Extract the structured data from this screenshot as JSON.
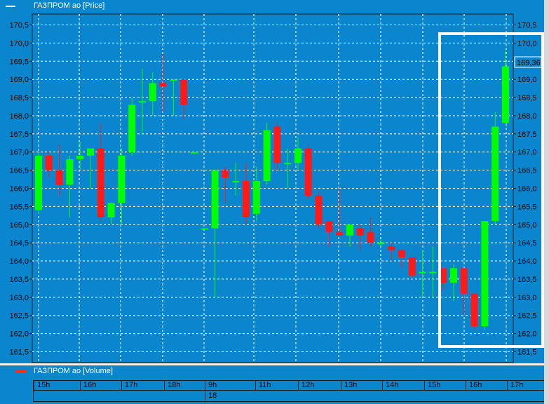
{
  "legend": {
    "price_label": "ГАЗПРОМ ао [Price]",
    "volume_label": "ГАЗПРОМ ао [Volume]"
  },
  "colors": {
    "background": "#0a86cf",
    "up": "#00ff00",
    "down": "#ff1a1a",
    "grid": "#ffffff",
    "highlight": "#ffffff"
  },
  "chart_data": {
    "type": "candlestick",
    "title": "ГАЗПРОМ ао [Price]",
    "ylim": [
      161.2,
      170.8
    ],
    "yticks": [
      "161,5",
      "162,0",
      "162,5",
      "163,0",
      "163,5",
      "164,0",
      "164,5",
      "165,0",
      "165,5",
      "166,0",
      "166,5",
      "167,0",
      "167,5",
      "168,0",
      "168,5",
      "169,0",
      "169,5",
      "170,0",
      "170,5"
    ],
    "ytick_values": [
      161.5,
      162.0,
      162.5,
      163.0,
      163.5,
      164.0,
      164.5,
      165.0,
      165.5,
      166.0,
      166.5,
      167.0,
      167.5,
      168.0,
      168.5,
      169.0,
      169.5,
      170.0,
      170.5
    ],
    "last_price_label": "169,36",
    "last_price": 169.36,
    "time_labels": [
      "15h",
      "16h",
      "17h",
      "18h",
      "9h",
      "11h",
      "12h",
      "13h",
      "14h",
      "15h",
      "16h",
      "17h"
    ],
    "date_labels": [
      "18"
    ],
    "grid": true,
    "candles": [
      {
        "o": 165.4,
        "h": 167.0,
        "l": 165.3,
        "c": 166.9
      },
      {
        "o": 166.9,
        "h": 167.0,
        "l": 166.3,
        "c": 166.5
      },
      {
        "o": 166.5,
        "h": 167.2,
        "l": 165.8,
        "c": 166.1
      },
      {
        "o": 166.1,
        "h": 166.9,
        "l": 165.2,
        "c": 166.8
      },
      {
        "o": 166.8,
        "h": 167.3,
        "l": 166.5,
        "c": 166.9
      },
      {
        "o": 166.9,
        "h": 167.1,
        "l": 166.0,
        "c": 167.1
      },
      {
        "o": 167.1,
        "h": 167.8,
        "l": 165.1,
        "c": 165.2
      },
      {
        "o": 165.2,
        "h": 165.6,
        "l": 165.0,
        "c": 165.6
      },
      {
        "o": 165.6,
        "h": 167.1,
        "l": 165.0,
        "c": 166.9
      },
      {
        "o": 167.0,
        "h": 168.5,
        "l": 166.9,
        "c": 168.3
      },
      {
        "o": 168.4,
        "h": 169.3,
        "l": 167.5,
        "c": 168.4
      },
      {
        "o": 168.4,
        "h": 169.2,
        "l": 168.0,
        "c": 168.9
      },
      {
        "o": 168.9,
        "h": 169.7,
        "l": 168.1,
        "c": 168.8
      },
      {
        "o": 169.0,
        "h": 169.0,
        "l": 168.0,
        "c": 169.0
      },
      {
        "o": 169.0,
        "h": 169.0,
        "l": 167.9,
        "c": 168.3
      },
      {
        "o": 167.0,
        "h": 167.0,
        "l": 167.0,
        "c": 167.0
      },
      {
        "o": 164.9,
        "h": 164.9,
        "l": 164.9,
        "c": 164.9
      },
      {
        "o": 164.9,
        "h": 166.5,
        "l": 163.0,
        "c": 166.5
      },
      {
        "o": 166.5,
        "h": 166.6,
        "l": 165.6,
        "c": 166.3
      },
      {
        "o": 166.2,
        "h": 166.7,
        "l": 165.8,
        "c": 166.2
      },
      {
        "o": 166.2,
        "h": 166.7,
        "l": 165.0,
        "c": 165.2
      },
      {
        "o": 165.3,
        "h": 166.6,
        "l": 165.1,
        "c": 166.2
      },
      {
        "o": 166.2,
        "h": 167.8,
        "l": 166.1,
        "c": 167.6
      },
      {
        "o": 167.7,
        "h": 167.8,
        "l": 166.5,
        "c": 166.7
      },
      {
        "o": 166.7,
        "h": 167.1,
        "l": 166.0,
        "c": 166.7
      },
      {
        "o": 166.7,
        "h": 167.4,
        "l": 166.5,
        "c": 167.1
      },
      {
        "o": 167.1,
        "h": 167.2,
        "l": 165.7,
        "c": 165.8
      },
      {
        "o": 165.8,
        "h": 165.9,
        "l": 164.9,
        "c": 165.0
      },
      {
        "o": 165.1,
        "h": 165.1,
        "l": 164.4,
        "c": 164.8
      },
      {
        "o": 164.8,
        "h": 166.0,
        "l": 164.7,
        "c": 164.7
      },
      {
        "o": 164.7,
        "h": 165.0,
        "l": 164.4,
        "c": 165.0
      },
      {
        "o": 164.9,
        "h": 165.0,
        "l": 164.3,
        "c": 164.7
      },
      {
        "o": 164.8,
        "h": 165.2,
        "l": 164.4,
        "c": 164.5
      },
      {
        "o": 164.5,
        "h": 164.6,
        "l": 164.4,
        "c": 164.5
      },
      {
        "o": 164.4,
        "h": 164.5,
        "l": 164.0,
        "c": 164.3
      },
      {
        "o": 164.3,
        "h": 164.3,
        "l": 163.8,
        "c": 164.1
      },
      {
        "o": 164.1,
        "h": 164.1,
        "l": 163.5,
        "c": 163.6
      },
      {
        "o": 163.7,
        "h": 164.3,
        "l": 163.0,
        "c": 163.7
      },
      {
        "o": 163.7,
        "h": 164.4,
        "l": 163.0,
        "c": 163.7
      },
      {
        "o": 163.8,
        "h": 163.8,
        "l": 163.2,
        "c": 163.4
      },
      {
        "o": 163.4,
        "h": 163.9,
        "l": 162.9,
        "c": 163.8
      },
      {
        "o": 163.8,
        "h": 163.8,
        "l": 162.5,
        "c": 163.1
      },
      {
        "o": 163.1,
        "h": 163.1,
        "l": 162.1,
        "c": 162.2
      },
      {
        "o": 162.2,
        "h": 165.1,
        "l": 162.1,
        "c": 165.1
      },
      {
        "o": 165.1,
        "h": 168.1,
        "l": 165.0,
        "c": 167.7
      },
      {
        "o": 167.8,
        "h": 169.8,
        "l": 167.8,
        "c": 169.36
      }
    ]
  }
}
